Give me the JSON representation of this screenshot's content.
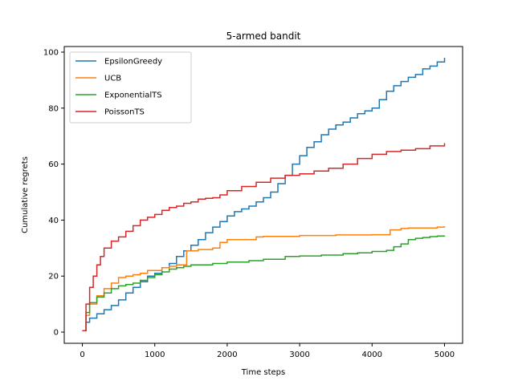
{
  "chart_data": {
    "type": "line",
    "title": "5-armed bandit",
    "xlabel": "Time steps",
    "ylabel": "Cumulative regrets",
    "xlim": [
      -250,
      5250
    ],
    "ylim": [
      -4,
      102
    ],
    "xticks": [
      0,
      1000,
      2000,
      3000,
      4000,
      5000
    ],
    "yticks": [
      0,
      20,
      40,
      60,
      80,
      100
    ],
    "grid": false,
    "legend_position": "top-left",
    "series": [
      {
        "name": "EpsilonGreedy",
        "color": "#1f77b4",
        "step": true,
        "x": [
          0,
          50,
          100,
          200,
          300,
          400,
          500,
          600,
          700,
          800,
          900,
          1000,
          1100,
          1200,
          1300,
          1400,
          1500,
          1600,
          1700,
          1800,
          1900,
          2000,
          2100,
          2200,
          2300,
          2400,
          2500,
          2600,
          2700,
          2800,
          2900,
          3000,
          3100,
          3200,
          3300,
          3400,
          3500,
          3600,
          3700,
          3800,
          3900,
          4000,
          4100,
          4200,
          4300,
          4400,
          4500,
          4600,
          4700,
          4800,
          4900,
          5000
        ],
        "y": [
          0.5,
          3.5,
          5,
          6.5,
          8,
          9.5,
          11.5,
          14,
          16,
          18,
          20,
          21,
          23,
          24.5,
          27,
          29,
          31,
          33,
          35.5,
          37.5,
          39.5,
          41.5,
          43,
          44,
          45,
          46.5,
          48,
          50,
          53,
          56,
          60,
          63,
          66,
          68,
          70.5,
          72.5,
          74,
          75,
          76.5,
          78,
          79,
          80,
          83,
          86,
          88,
          89.5,
          91,
          92,
          94,
          95,
          96.5,
          98
        ]
      },
      {
        "name": "UCB",
        "color": "#ff7f0e",
        "step": true,
        "x": [
          0,
          50,
          100,
          200,
          300,
          400,
          500,
          600,
          700,
          800,
          900,
          1000,
          1100,
          1200,
          1300,
          1400,
          1440,
          1600,
          1700,
          1800,
          1900,
          2000,
          2400,
          2500,
          3000,
          3500,
          4000,
          4250,
          4400,
          4500,
          4900,
          5000
        ],
        "y": [
          0.5,
          6,
          10,
          13,
          15.5,
          17.5,
          19.5,
          20,
          20.5,
          21,
          22,
          22,
          23,
          23.5,
          24,
          24,
          29,
          29.5,
          29.5,
          30,
          32,
          33,
          34,
          34.2,
          34.5,
          34.7,
          34.8,
          36.5,
          37,
          37.2,
          37.5,
          37.8
        ]
      },
      {
        "name": "ExponentialTS",
        "color": "#2ca02c",
        "step": true,
        "x": [
          0,
          50,
          100,
          200,
          300,
          400,
          500,
          600,
          700,
          800,
          900,
          1000,
          1100,
          1200,
          1300,
          1400,
          1500,
          1800,
          2000,
          2300,
          2500,
          2800,
          3000,
          3300,
          3600,
          3800,
          4000,
          4200,
          4300,
          4400,
          4500,
          4600,
          4700,
          4800,
          4900,
          5000
        ],
        "y": [
          0.5,
          7,
          10.5,
          12.5,
          14,
          15.5,
          16.5,
          17,
          17.5,
          18.5,
          19.5,
          20.5,
          21.5,
          22.5,
          23,
          23.5,
          24,
          24.5,
          25,
          25.5,
          26,
          27,
          27.2,
          27.5,
          28,
          28.3,
          28.8,
          29.2,
          30.5,
          31.5,
          33,
          33.5,
          33.8,
          34.1,
          34.3,
          34.5
        ]
      },
      {
        "name": "PoissonTS",
        "color": "#d62728",
        "step": true,
        "x": [
          0,
          50,
          100,
          150,
          200,
          250,
          300,
          400,
          500,
          600,
          700,
          800,
          900,
          1000,
          1100,
          1200,
          1300,
          1400,
          1500,
          1600,
          1700,
          1800,
          1900,
          2000,
          2200,
          2400,
          2600,
          2800,
          3000,
          3200,
          3400,
          3600,
          3800,
          4000,
          4200,
          4400,
          4600,
          4800,
          5000
        ],
        "y": [
          0.5,
          10,
          16,
          20,
          24,
          27,
          30,
          32.5,
          34,
          36,
          38,
          40,
          41,
          42,
          43.5,
          44.5,
          45,
          46,
          46.5,
          47.5,
          47.8,
          48,
          49,
          50.5,
          52,
          53.5,
          55,
          56,
          56.5,
          57.5,
          58.5,
          60,
          62,
          63.5,
          64.5,
          65,
          65.5,
          66.5,
          67.5
        ]
      }
    ]
  }
}
